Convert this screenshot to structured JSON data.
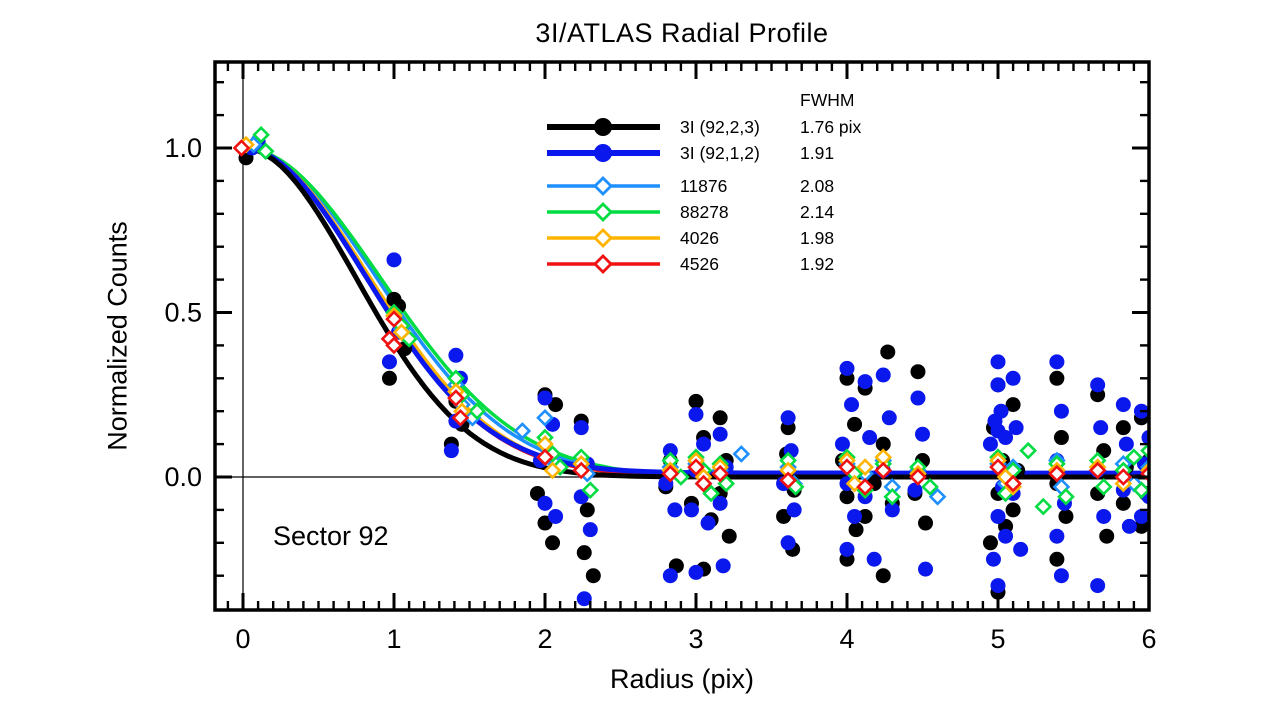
{
  "title": "3I/ATLAS Radial Profile",
  "annotation": "Sector 92",
  "legend": {
    "header": "FWHM"
  },
  "chart_data": {
    "type": "scatter",
    "title": "3I/ATLAS Radial Profile",
    "xlabel": "Radius (pix)",
    "ylabel": "Normalized Counts",
    "xlim": [
      -0.19,
      6.0
    ],
    "ylim": [
      -0.4,
      1.26
    ],
    "x_major_ticks": [
      0,
      1,
      2,
      3,
      4,
      5,
      6
    ],
    "y_major_ticks": [
      0.0,
      0.5,
      1.0
    ],
    "minor_tick_step": 0.1,
    "grid": false,
    "legend_position": "upper-middle",
    "reference_lines": {
      "vertical_x": 0,
      "horizontal_y": 0
    },
    "curve_model": "gaussian y = baseline + (1-baseline)*exp(-r^2/(2*sigma^2)), sigma = FWHM/2.35482",
    "series": [
      {
        "name": "3I (92,2,3)",
        "fwhm": 1.76,
        "fwhm_label": "1.76 pix",
        "color": "#000000",
        "marker": "circle",
        "line_width": 5,
        "baseline": 0,
        "points": [
          [
            0.02,
            0.97
          ],
          [
            1.0,
            0.54
          ],
          [
            1.03,
            0.52
          ],
          [
            0.97,
            0.3
          ],
          [
            1.07,
            0.39
          ],
          [
            1.41,
            0.23
          ],
          [
            1.45,
            0.16
          ],
          [
            1.38,
            0.1
          ],
          [
            2.0,
            0.25
          ],
          [
            2.07,
            0.22
          ],
          [
            1.95,
            -0.05
          ],
          [
            2.0,
            -0.14
          ],
          [
            2.05,
            -0.2
          ],
          [
            2.24,
            0.17
          ],
          [
            2.28,
            -0.1
          ],
          [
            2.26,
            -0.23
          ],
          [
            2.32,
            -0.3
          ],
          [
            2.83,
            0.05
          ],
          [
            2.8,
            -0.03
          ],
          [
            2.87,
            -0.27
          ],
          [
            3.0,
            0.23
          ],
          [
            3.05,
            0.12
          ],
          [
            3.0,
            0.04
          ],
          [
            2.97,
            -0.08
          ],
          [
            3.1,
            -0.13
          ],
          [
            3.05,
            -0.28
          ],
          [
            3.16,
            0.18
          ],
          [
            3.2,
            0.05
          ],
          [
            3.16,
            -0.05
          ],
          [
            3.22,
            -0.18
          ],
          [
            3.61,
            0.15
          ],
          [
            3.6,
            0.07
          ],
          [
            3.65,
            -0.04
          ],
          [
            3.58,
            -0.12
          ],
          [
            3.64,
            -0.22
          ],
          [
            4.0,
            0.3
          ],
          [
            4.05,
            0.16
          ],
          [
            3.97,
            0.05
          ],
          [
            4.0,
            -0.06
          ],
          [
            4.06,
            -0.16
          ],
          [
            4.0,
            -0.25
          ],
          [
            4.12,
            0.27
          ],
          [
            4.18,
            -0.02
          ],
          [
            4.12,
            -0.12
          ],
          [
            4.27,
            0.38
          ],
          [
            4.24,
            0.1
          ],
          [
            4.3,
            -0.08
          ],
          [
            4.24,
            -0.3
          ],
          [
            4.47,
            0.32
          ],
          [
            4.5,
            0.05
          ],
          [
            4.45,
            -0.05
          ],
          [
            4.52,
            -0.14
          ],
          [
            5.0,
            0.28
          ],
          [
            4.97,
            0.15
          ],
          [
            5.03,
            0.05
          ],
          [
            5.0,
            -0.05
          ],
          [
            5.05,
            -0.15
          ],
          [
            4.95,
            -0.2
          ],
          [
            5.0,
            -0.35
          ],
          [
            5.1,
            0.22
          ],
          [
            5.13,
            0.02
          ],
          [
            5.1,
            -0.1
          ],
          [
            5.39,
            0.3
          ],
          [
            5.42,
            0.12
          ],
          [
            5.39,
            -0.02
          ],
          [
            5.45,
            -0.12
          ],
          [
            5.39,
            -0.25
          ],
          [
            5.66,
            0.25
          ],
          [
            5.7,
            0.08
          ],
          [
            5.66,
            -0.05
          ],
          [
            5.72,
            -0.18
          ],
          [
            5.83,
            0.15
          ],
          [
            5.85,
            0.03
          ],
          [
            5.83,
            -0.08
          ],
          [
            5.95,
            0.18
          ],
          [
            6.0,
            0.05
          ],
          [
            5.98,
            -0.05
          ],
          [
            5.95,
            -0.15
          ]
        ]
      },
      {
        "name": "3I (92,1,2)",
        "fwhm": 1.91,
        "fwhm_label": "1.91",
        "color": "#0A18EE",
        "marker": "circle",
        "line_width": 5,
        "baseline": 0.012,
        "points": [
          [
            0.06,
            1.0
          ],
          [
            0.1,
            1.02
          ],
          [
            1.0,
            0.66
          ],
          [
            1.03,
            0.44
          ],
          [
            0.97,
            0.35
          ],
          [
            1.41,
            0.37
          ],
          [
            1.44,
            0.3
          ],
          [
            1.41,
            0.17
          ],
          [
            1.38,
            0.08
          ],
          [
            2.0,
            0.24
          ],
          [
            2.05,
            0.16
          ],
          [
            1.97,
            0.05
          ],
          [
            2.0,
            -0.08
          ],
          [
            2.07,
            -0.12
          ],
          [
            2.24,
            0.15
          ],
          [
            2.28,
            0.04
          ],
          [
            2.24,
            -0.06
          ],
          [
            2.3,
            -0.16
          ],
          [
            2.26,
            -0.37
          ],
          [
            2.83,
            0.08
          ],
          [
            2.8,
            -0.02
          ],
          [
            2.86,
            -0.1
          ],
          [
            2.83,
            -0.3
          ],
          [
            3.0,
            0.19
          ],
          [
            3.05,
            0.1
          ],
          [
            3.0,
            0.02
          ],
          [
            2.97,
            -0.1
          ],
          [
            3.08,
            -0.14
          ],
          [
            3.0,
            -0.29
          ],
          [
            3.16,
            0.13
          ],
          [
            3.2,
            0.03
          ],
          [
            3.16,
            -0.08
          ],
          [
            3.18,
            -0.27
          ],
          [
            3.61,
            0.18
          ],
          [
            3.63,
            0.08
          ],
          [
            3.58,
            -0.02
          ],
          [
            3.65,
            -0.1
          ],
          [
            3.61,
            -0.2
          ],
          [
            4.0,
            0.33
          ],
          [
            4.03,
            0.22
          ],
          [
            3.97,
            0.1
          ],
          [
            4.0,
            -0.02
          ],
          [
            4.05,
            -0.12
          ],
          [
            4.0,
            -0.22
          ],
          [
            4.12,
            0.29
          ],
          [
            4.15,
            0.12
          ],
          [
            4.12,
            -0.06
          ],
          [
            4.18,
            -0.25
          ],
          [
            4.24,
            0.31
          ],
          [
            4.28,
            0.18
          ],
          [
            4.24,
            0.02
          ],
          [
            4.3,
            -0.1
          ],
          [
            4.47,
            0.24
          ],
          [
            4.5,
            0.13
          ],
          [
            4.45,
            -0.04
          ],
          [
            4.52,
            -0.28
          ],
          [
            5.0,
            0.35
          ],
          [
            5.0,
            0.28
          ],
          [
            5.02,
            0.2
          ],
          [
            4.98,
            0.17
          ],
          [
            5.0,
            0.14
          ],
          [
            5.05,
            0.12
          ],
          [
            4.95,
            0.1
          ],
          [
            5.0,
            0.05
          ],
          [
            5.03,
            -0.03
          ],
          [
            5.0,
            -0.12
          ],
          [
            5.05,
            -0.18
          ],
          [
            4.97,
            -0.25
          ],
          [
            5.0,
            -0.33
          ],
          [
            5.1,
            0.3
          ],
          [
            5.12,
            0.15
          ],
          [
            5.1,
            -0.05
          ],
          [
            5.15,
            -0.22
          ],
          [
            5.39,
            0.35
          ],
          [
            5.42,
            0.2
          ],
          [
            5.39,
            0.05
          ],
          [
            5.44,
            -0.08
          ],
          [
            5.39,
            -0.18
          ],
          [
            5.42,
            -0.3
          ],
          [
            5.66,
            0.28
          ],
          [
            5.68,
            0.15
          ],
          [
            5.66,
            0.02
          ],
          [
            5.7,
            -0.12
          ],
          [
            5.66,
            -0.33
          ],
          [
            5.83,
            0.22
          ],
          [
            5.85,
            0.1
          ],
          [
            5.83,
            -0.04
          ],
          [
            5.87,
            -0.15
          ],
          [
            5.95,
            0.2
          ],
          [
            6.0,
            0.12
          ],
          [
            5.97,
            0.04
          ],
          [
            6.0,
            -0.06
          ],
          [
            5.95,
            -0.12
          ]
        ]
      },
      {
        "name": "11876",
        "fwhm": 2.08,
        "fwhm_label": "2.08",
        "color": "#1E8FFF",
        "marker": "diamond",
        "line_width": 3.5,
        "baseline": 0,
        "points": [
          [
            0.07,
            1.01
          ],
          [
            1.0,
            0.5
          ],
          [
            1.05,
            0.45
          ],
          [
            1.41,
            0.28
          ],
          [
            1.45,
            0.22
          ],
          [
            1.52,
            0.18
          ],
          [
            1.85,
            0.14
          ],
          [
            2.0,
            0.18
          ],
          [
            2.02,
            0.08
          ],
          [
            2.07,
            0.04
          ],
          [
            2.24,
            0.05
          ],
          [
            2.28,
            0.01
          ],
          [
            2.83,
            0.03
          ],
          [
            3.0,
            0.04
          ],
          [
            3.05,
            -0.02
          ],
          [
            3.16,
            0.02
          ],
          [
            3.3,
            0.07
          ],
          [
            3.61,
            0.03
          ],
          [
            3.65,
            -0.02
          ],
          [
            4.0,
            0.04
          ],
          [
            4.12,
            0.01
          ],
          [
            4.24,
            0.05
          ],
          [
            4.3,
            -0.03
          ],
          [
            4.47,
            0.02
          ],
          [
            4.6,
            -0.06
          ],
          [
            5.0,
            0.04
          ],
          [
            5.05,
            -0.02
          ],
          [
            5.1,
            0.03
          ],
          [
            5.39,
            0.05
          ],
          [
            5.42,
            -0.03
          ],
          [
            5.66,
            0.02
          ],
          [
            5.83,
            0.04
          ],
          [
            5.9,
            -0.02
          ],
          [
            6.0,
            0.03
          ]
        ]
      },
      {
        "name": "88278",
        "fwhm": 2.14,
        "fwhm_label": "2.14",
        "color": "#00DC42",
        "marker": "diamond",
        "line_width": 3.5,
        "baseline": 0,
        "points": [
          [
            0.12,
            1.04
          ],
          [
            0.15,
            0.99
          ],
          [
            1.0,
            0.5
          ],
          [
            1.05,
            0.46
          ],
          [
            1.1,
            0.42
          ],
          [
            1.41,
            0.3
          ],
          [
            1.45,
            0.25
          ],
          [
            1.55,
            0.2
          ],
          [
            2.0,
            0.12
          ],
          [
            2.05,
            0.07
          ],
          [
            2.1,
            0.03
          ],
          [
            2.24,
            0.06
          ],
          [
            2.3,
            -0.04
          ],
          [
            2.83,
            0.05
          ],
          [
            2.9,
            0.0
          ],
          [
            3.0,
            0.06
          ],
          [
            3.05,
            0.02
          ],
          [
            3.1,
            -0.05
          ],
          [
            3.16,
            0.04
          ],
          [
            3.2,
            -0.02
          ],
          [
            3.61,
            0.05
          ],
          [
            3.66,
            -0.03
          ],
          [
            4.0,
            0.06
          ],
          [
            4.05,
            0.01
          ],
          [
            4.12,
            -0.04
          ],
          [
            4.24,
            0.04
          ],
          [
            4.3,
            -0.06
          ],
          [
            4.47,
            0.03
          ],
          [
            4.55,
            -0.03
          ],
          [
            5.0,
            0.06
          ],
          [
            5.05,
            -0.05
          ],
          [
            5.1,
            0.02
          ],
          [
            5.2,
            0.08
          ],
          [
            5.3,
            -0.09
          ],
          [
            5.39,
            0.04
          ],
          [
            5.45,
            -0.06
          ],
          [
            5.66,
            0.05
          ],
          [
            5.7,
            -0.03
          ],
          [
            5.83,
            0.02
          ],
          [
            5.9,
            0.06
          ],
          [
            5.95,
            -0.04
          ],
          [
            6.0,
            0.08
          ]
        ]
      },
      {
        "name": "4026",
        "fwhm": 1.98,
        "fwhm_label": "1.98",
        "color": "#FFB400",
        "marker": "diamond",
        "line_width": 3.5,
        "baseline": 0,
        "points": [
          [
            0.02,
            1.01
          ],
          [
            1.0,
            0.49
          ],
          [
            1.05,
            0.44
          ],
          [
            1.41,
            0.26
          ],
          [
            1.45,
            0.2
          ],
          [
            2.0,
            0.1
          ],
          [
            2.05,
            0.02
          ],
          [
            2.24,
            0.04
          ],
          [
            2.83,
            0.02
          ],
          [
            3.0,
            0.05
          ],
          [
            3.05,
            0.0
          ],
          [
            3.16,
            0.03
          ],
          [
            3.61,
            0.02
          ],
          [
            4.0,
            0.05
          ],
          [
            4.05,
            -0.02
          ],
          [
            4.12,
            0.03
          ],
          [
            4.24,
            0.06
          ],
          [
            4.47,
            0.01
          ],
          [
            5.0,
            0.05
          ],
          [
            5.05,
            0.0
          ],
          [
            5.1,
            -0.03
          ],
          [
            5.39,
            0.02
          ],
          [
            5.66,
            0.03
          ],
          [
            5.83,
            -0.02
          ],
          [
            6.0,
            0.02
          ]
        ]
      },
      {
        "name": "4526",
        "fwhm": 1.92,
        "fwhm_label": "1.92",
        "color": "#F01212",
        "marker": "diamond",
        "line_width": 3.5,
        "baseline": 0.005,
        "points": [
          [
            -0.01,
            1.0
          ],
          [
            1.0,
            0.48
          ],
          [
            0.97,
            0.42
          ],
          [
            1.0,
            0.4
          ],
          [
            1.41,
            0.24
          ],
          [
            1.44,
            0.18
          ],
          [
            2.0,
            0.06
          ],
          [
            2.24,
            0.02
          ],
          [
            2.83,
            0.01
          ],
          [
            3.0,
            0.03
          ],
          [
            3.05,
            -0.02
          ],
          [
            3.16,
            0.01
          ],
          [
            3.61,
            -0.01
          ],
          [
            4.0,
            0.03
          ],
          [
            4.12,
            -0.03
          ],
          [
            4.24,
            0.02
          ],
          [
            4.47,
            0.0
          ],
          [
            5.0,
            0.03
          ],
          [
            5.1,
            -0.02
          ],
          [
            5.39,
            0.01
          ],
          [
            5.66,
            0.02
          ],
          [
            5.83,
            0.0
          ],
          [
            6.0,
            0.01
          ]
        ]
      }
    ]
  }
}
